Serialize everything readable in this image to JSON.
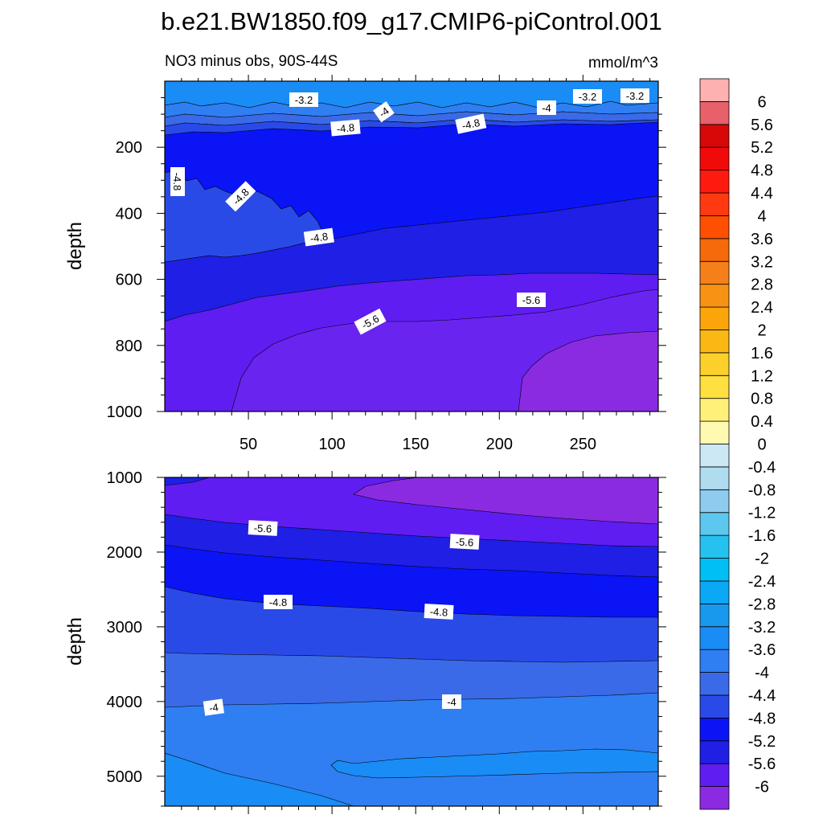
{
  "title": "b.e21.BW1850.f09_g17.CMIP6-piControl.001",
  "chart_data": {
    "type": "contour",
    "subtitle": "NO3 minus obs, 90S-44S",
    "units": "mmol/m^3",
    "colorbar": {
      "levels": [
        -6,
        -5.6,
        -5.2,
        -4.8,
        -4.4,
        -4,
        -3.6,
        -3.2,
        -2.8,
        -2.4,
        -2,
        -1.6,
        -1.2,
        -0.8,
        -0.4,
        0,
        0.4,
        0.8,
        1.2,
        1.6,
        2,
        2.4,
        2.8,
        3.2,
        3.6,
        4,
        4.4,
        4.8,
        5.2,
        5.6,
        6
      ],
      "colors": [
        "#8a2be2",
        "#5f1df2",
        "#1f1fe6",
        "#0a14f5",
        "#2a4ae8",
        "#3a6ae8",
        "#2f7ff2",
        "#1a8cf5",
        "#1899ee",
        "#0aa8f5",
        "#00bff5",
        "#25c2f0",
        "#5cc8f0",
        "#8ecbef",
        "#b0dcf0",
        "#cce8f4",
        "#fffab0",
        "#fff07a",
        "#ffe040",
        "#fcd02a",
        "#fbb814",
        "#fca50a",
        "#f89214",
        "#f5801a",
        "#f56a0a",
        "#ff4f00",
        "#ff3a10",
        "#ff1a10",
        "#f00a0a",
        "#d60808",
        "#e8606a",
        "#ffb0b0"
      ]
    },
    "panels": [
      {
        "name": "upper",
        "ylabel": "depth",
        "xlim": [
          0,
          295
        ],
        "ylim": [
          1000,
          0
        ],
        "xticks": [
          50,
          100,
          150,
          200,
          250
        ],
        "yticks": [
          200,
          400,
          600,
          800,
          1000
        ],
        "contour_labels": [
          "-3.2",
          "-4",
          "-4",
          "-3.2",
          "-3.2",
          "-4.8",
          "-4.8",
          "-4.8",
          "-4.8",
          "-4.8",
          "-5.6",
          "-5.6"
        ]
      },
      {
        "name": "lower",
        "ylabel": "depth",
        "xlim": [
          0,
          295
        ],
        "ylim": [
          5400,
          1000
        ],
        "yticks": [
          1000,
          2000,
          3000,
          4000,
          5000
        ],
        "contour_labels": [
          "-5.6",
          "-5.6",
          "-4.8",
          "-4.8",
          "-4",
          "-4"
        ]
      }
    ]
  }
}
